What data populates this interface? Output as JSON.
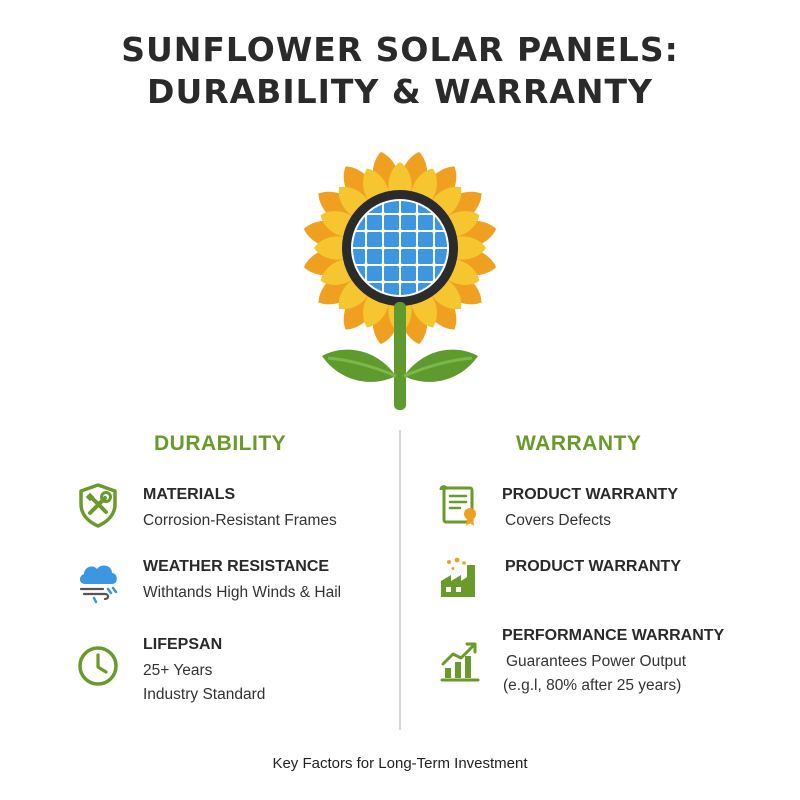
{
  "title": {
    "line1": "SUNFLOWER SOLAR PANELS:",
    "line2": "DURABILITY & WARRANTY"
  },
  "colors": {
    "green": "#6a9a2a",
    "petal_dark": "#f0a020",
    "petal_light": "#f6c630",
    "panel_blue": "#3c96e0"
  },
  "durability": {
    "heading": "DURABILITY",
    "items": [
      {
        "icon": "shield-tools-icon",
        "title": "MATERIALS",
        "lines": [
          "Corrosion-Resistant Frames"
        ]
      },
      {
        "icon": "cloud-rain-wind-icon",
        "title": "WEATHER RESISTANCE",
        "lines": [
          "Withtands High Winds & Hail"
        ]
      },
      {
        "icon": "clock-icon",
        "title": "LIFEPSAN",
        "lines": [
          "25+ Years",
          "Industry Standard"
        ]
      }
    ]
  },
  "warranty": {
    "heading": "WARRANTY",
    "items": [
      {
        "icon": "certificate-icon",
        "title": "PRODUCT WARRANTY",
        "lines": [
          "Covers Defects"
        ]
      },
      {
        "icon": "factory-icon",
        "title": "PRODUCT WARRANTY",
        "lines": []
      },
      {
        "icon": "growth-chart-icon",
        "title": "PERFORMANCE WARRANTY",
        "lines": [
          "Guarantees Power Output",
          "(e.g.l, 80% after 25 years)"
        ]
      }
    ]
  },
  "footer": "Key Factors for Long-Term Investment"
}
